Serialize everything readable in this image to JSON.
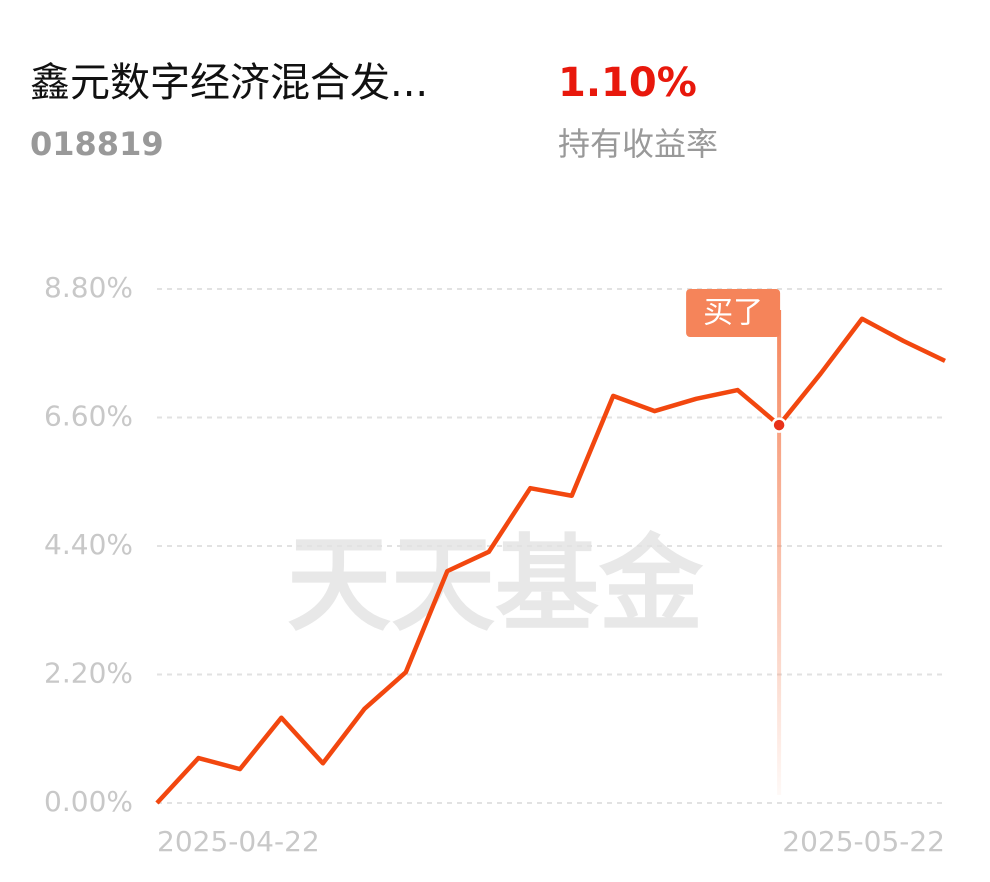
{
  "header": {
    "title": "鑫元数字经济混合发...",
    "code": "018819",
    "rate": "1.10%",
    "rate_label": "持有收益率"
  },
  "chart_data": {
    "type": "line",
    "watermark": "天天基金",
    "color": "#f2470f",
    "categories": [
      "2025-04-22",
      null,
      null,
      null,
      null,
      null,
      null,
      null,
      null,
      null,
      null,
      null,
      null,
      null,
      null,
      null,
      null,
      null,
      null,
      "2025-05-22"
    ],
    "values": [
      0,
      0.77,
      0.58,
      1.46,
      0.68,
      1.61,
      2.24,
      3.97,
      4.3,
      5.39,
      5.26,
      6.97,
      6.71,
      6.92,
      7.07,
      6.47,
      7.35,
      8.29,
      7.91,
      7.57
    ],
    "ylim": [
      0,
      8.8
    ],
    "yticks": [
      {
        "value": 0,
        "label": "0.00%"
      },
      {
        "value": 2.2,
        "label": "2.20%"
      },
      {
        "value": 4.4,
        "label": "4.40%"
      },
      {
        "value": 6.6,
        "label": "6.60%"
      },
      {
        "value": 8.8,
        "label": "8.80%"
      }
    ],
    "grid": true,
    "annotations": [
      {
        "text": "买了",
        "point": 15
      }
    ]
  }
}
